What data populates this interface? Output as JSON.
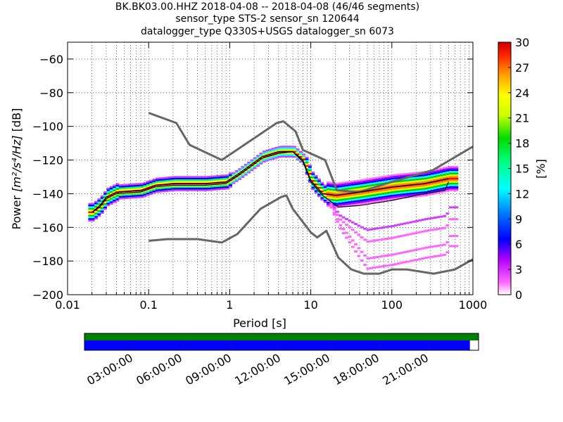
{
  "figure": {
    "title_lines": [
      "BK.BK03.00.HHZ   2018-04-08 -- 2018-04-08  (46/46 segments)",
      "sensor_type STS-2 sensor_sn 120644",
      "datalogger_type Q330S+USGS datalogger_sn 6073"
    ]
  },
  "chart_data": {
    "type": "heatmap",
    "title": "BK.BK03.00.HHZ   2018-04-08 -- 2018-04-08  (46/46 segments)",
    "xlabel": "Period [s]",
    "ylabel_prefix": "Power ",
    "ylabel_math": "[m²/s⁴/Hz]",
    "ylabel_suffix": " [dB]",
    "xscale": "log",
    "xlim": [
      0.01,
      1000
    ],
    "ylim": [
      -200,
      -50
    ],
    "xticks": [
      "0.01",
      "0.1",
      "1",
      "10",
      "100",
      "1000"
    ],
    "yticks": [
      "−60",
      "−80",
      "−100",
      "−120",
      "−140",
      "−160",
      "−180",
      "−200"
    ],
    "colorbar": {
      "label": "[%]",
      "range": [
        0,
        30
      ],
      "ticks": [
        "0",
        "3",
        "6",
        "9",
        "12",
        "15",
        "18",
        "21",
        "24",
        "27",
        "30"
      ]
    },
    "grid": true,
    "noise_model_high": [
      [
        0.1,
        -92
      ],
      [
        0.22,
        -98
      ],
      [
        0.32,
        -111
      ],
      [
        0.8,
        -120
      ],
      [
        3.8,
        -98
      ],
      [
        4.6,
        -97
      ],
      [
        6.5,
        -103
      ],
      [
        8,
        -114
      ],
      [
        15,
        -120
      ],
      [
        21,
        -138
      ],
      [
        40,
        -139
      ],
      [
        100,
        -133
      ],
      [
        320,
        -126
      ],
      [
        1000,
        -112
      ]
    ],
    "noise_model_low": [
      [
        0.1,
        -168
      ],
      [
        0.17,
        -167
      ],
      [
        0.4,
        -167
      ],
      [
        0.8,
        -169
      ],
      [
        1.24,
        -164
      ],
      [
        2.4,
        -149
      ],
      [
        4.3,
        -142
      ],
      [
        5,
        -141
      ],
      [
        6,
        -149
      ],
      [
        10,
        -163
      ],
      [
        12,
        -166
      ],
      [
        15.6,
        -162
      ],
      [
        21.9,
        -178
      ],
      [
        31.6,
        -185
      ],
      [
        45,
        -187.5
      ],
      [
        70,
        -187.5
      ],
      [
        101,
        -185
      ],
      [
        154,
        -185
      ],
      [
        328,
        -187.5
      ],
      [
        600,
        -185
      ],
      [
        1000,
        -179
      ]
    ],
    "median": [
      [
        0.02,
        -151
      ],
      [
        0.025,
        -147
      ],
      [
        0.03,
        -142
      ],
      [
        0.04,
        -139
      ],
      [
        0.08,
        -138
      ],
      [
        0.12,
        -135
      ],
      [
        0.2,
        -134
      ],
      [
        0.5,
        -134
      ],
      [
        0.9,
        -133
      ],
      [
        1.3,
        -128
      ],
      [
        2.5,
        -118
      ],
      [
        4,
        -115
      ],
      [
        6,
        -115
      ],
      [
        8,
        -120
      ],
      [
        10,
        -132
      ],
      [
        14,
        -140
      ],
      [
        20,
        -141
      ],
      [
        40,
        -139
      ],
      [
        100,
        -136
      ],
      [
        250,
        -134
      ],
      [
        500,
        -131
      ]
    ],
    "mode": [
      [
        0.02,
        -151
      ],
      [
        0.025,
        -148
      ],
      [
        0.03,
        -143
      ],
      [
        0.04,
        -140
      ],
      [
        0.08,
        -139
      ],
      [
        0.12,
        -136
      ],
      [
        0.2,
        -135
      ],
      [
        0.5,
        -135
      ],
      [
        0.9,
        -134
      ],
      [
        1.3,
        -129
      ],
      [
        2.5,
        -119
      ],
      [
        4,
        -116
      ],
      [
        6,
        -115
      ],
      [
        8,
        -121
      ],
      [
        10,
        -133
      ],
      [
        14,
        -141
      ],
      [
        22,
        -148
      ],
      [
        40,
        -147
      ],
      [
        100,
        -144
      ],
      [
        250,
        -140
      ],
      [
        450,
        -138
      ],
      [
        500,
        -133
      ]
    ],
    "timeline": {
      "ticks": [
        "03:00:00",
        "06:00:00",
        "09:00:00",
        "12:00:00",
        "15:00:00",
        "18:00:00",
        "21:00:00"
      ],
      "coverage": 0.978
    }
  },
  "colors": {
    "noise_model": "#666666",
    "timeline_top": "#008000",
    "timeline_bottom": "#0000ff"
  }
}
